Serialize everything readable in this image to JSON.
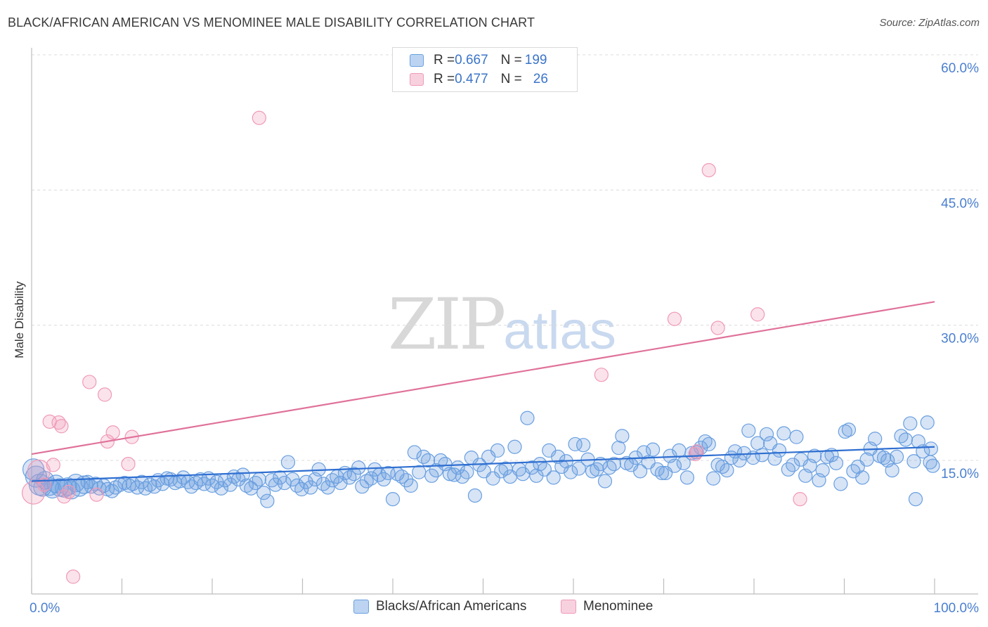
{
  "title": "BLACK/AFRICAN AMERICAN VS MENOMINEE MALE DISABILITY CORRELATION CHART",
  "source": "Source: ZipAtlas.com",
  "watermark": {
    "part1": "ZIP",
    "part2": "atlas"
  },
  "legend_top": [
    {
      "r_label": "R = ",
      "r_value": "0.667",
      "n_label": "N = ",
      "n_value": "199",
      "color": "#6a9fe0"
    },
    {
      "r_label": "R = ",
      "r_value": "0.477",
      "n_label": "N = ",
      "n_value": "26",
      "color": "#f09ab8"
    }
  ],
  "chart_data": {
    "type": "scatter",
    "ylabel": "Male Disability",
    "xlim": [
      0,
      100
    ],
    "ylim": [
      0,
      62
    ],
    "x_tick_labels": [
      "0.0%",
      "100.0%"
    ],
    "y_ticks": [
      15,
      30,
      45,
      60
    ],
    "y_tick_labels": [
      "15.0%",
      "30.0%",
      "45.0%",
      "60.0%"
    ],
    "grid": "horizontal dashed",
    "legend_position": "bottom",
    "series": [
      {
        "name": "Blacks/African Americans",
        "color": "#6a9fe0",
        "line_color": "#2f6fd1",
        "trend": {
          "x": [
            0,
            100
          ],
          "y": [
            12.7,
            16.5
          ]
        },
        "points": [
          [
            0.2,
            14.0
          ],
          [
            0.5,
            13.2
          ],
          [
            0.9,
            12.3
          ],
          [
            1.2,
            12.0
          ],
          [
            1.5,
            12.8
          ],
          [
            2.0,
            12.1
          ],
          [
            2.3,
            11.8
          ],
          [
            2.7,
            12.4
          ],
          [
            3.1,
            12.0
          ],
          [
            3.6,
            11.9
          ],
          [
            4.0,
            12.1
          ],
          [
            4.4,
            11.7
          ],
          [
            4.9,
            12.5
          ],
          [
            5.3,
            12.0
          ],
          [
            5.8,
            12.3
          ],
          [
            6.2,
            12.6
          ],
          [
            6.6,
            12.1
          ],
          [
            7.1,
            12.4
          ],
          [
            7.5,
            11.9
          ],
          [
            8.0,
            12.2
          ],
          [
            8.4,
            11.8
          ],
          [
            8.9,
            11.6
          ],
          [
            9.3,
            12.0
          ],
          [
            9.8,
            12.3
          ],
          [
            10.3,
            12.5
          ],
          [
            10.8,
            12.2
          ],
          [
            11.2,
            12.4
          ],
          [
            11.7,
            12.0
          ],
          [
            12.2,
            12.6
          ],
          [
            12.6,
            11.9
          ],
          [
            13.1,
            12.3
          ],
          [
            13.6,
            12.1
          ],
          [
            14.0,
            12.8
          ],
          [
            14.5,
            12.4
          ],
          [
            15.0,
            13.0
          ],
          [
            15.4,
            12.9
          ],
          [
            15.9,
            12.5
          ],
          [
            16.4,
            12.7
          ],
          [
            16.8,
            13.1
          ],
          [
            17.3,
            12.6
          ],
          [
            17.7,
            12.1
          ],
          [
            18.2,
            12.5
          ],
          [
            18.7,
            12.9
          ],
          [
            19.1,
            12.4
          ],
          [
            19.6,
            13.0
          ],
          [
            20.0,
            12.2
          ],
          [
            20.5,
            12.6
          ],
          [
            21.0,
            11.9
          ],
          [
            21.4,
            12.8
          ],
          [
            22.0,
            12.3
          ],
          [
            22.4,
            13.2
          ],
          [
            22.9,
            12.9
          ],
          [
            23.4,
            13.4
          ],
          [
            23.8,
            12.2
          ],
          [
            24.3,
            11.9
          ],
          [
            24.8,
            12.5
          ],
          [
            25.2,
            12.9
          ],
          [
            25.7,
            11.4
          ],
          [
            26.1,
            10.5
          ],
          [
            26.6,
            12.8
          ],
          [
            27.0,
            12.3
          ],
          [
            27.5,
            13.1
          ],
          [
            28.0,
            12.5
          ],
          [
            28.4,
            14.8
          ],
          [
            28.9,
            12.9
          ],
          [
            29.4,
            12.2
          ],
          [
            29.9,
            11.8
          ],
          [
            30.4,
            12.6
          ],
          [
            30.9,
            12.0
          ],
          [
            31.4,
            12.9
          ],
          [
            31.8,
            14.0
          ],
          [
            32.3,
            12.4
          ],
          [
            32.8,
            12.0
          ],
          [
            33.3,
            12.8
          ],
          [
            33.8,
            13.2
          ],
          [
            34.2,
            12.5
          ],
          [
            34.7,
            13.6
          ],
          [
            35.2,
            13.1
          ],
          [
            35.7,
            13.5
          ],
          [
            36.2,
            14.2
          ],
          [
            36.6,
            12.1
          ],
          [
            37.1,
            12.7
          ],
          [
            37.6,
            13.0
          ],
          [
            38.0,
            14.0
          ],
          [
            38.5,
            13.4
          ],
          [
            39.0,
            12.9
          ],
          [
            39.5,
            13.6
          ],
          [
            40.0,
            10.7
          ],
          [
            40.5,
            13.5
          ],
          [
            41.0,
            13.2
          ],
          [
            41.5,
            12.8
          ],
          [
            42.0,
            12.2
          ],
          [
            42.4,
            15.9
          ],
          [
            42.9,
            13.7
          ],
          [
            43.4,
            15.4
          ],
          [
            43.9,
            15.0
          ],
          [
            44.3,
            13.3
          ],
          [
            44.8,
            13.9
          ],
          [
            45.3,
            15.0
          ],
          [
            45.8,
            14.6
          ],
          [
            46.3,
            13.5
          ],
          [
            46.8,
            13.4
          ],
          [
            47.2,
            14.2
          ],
          [
            47.7,
            13.2
          ],
          [
            48.2,
            13.7
          ],
          [
            48.7,
            15.3
          ],
          [
            49.1,
            11.1
          ],
          [
            49.6,
            14.5
          ],
          [
            50.1,
            13.8
          ],
          [
            50.6,
            15.4
          ],
          [
            51.1,
            13.0
          ],
          [
            51.6,
            16.1
          ],
          [
            52.0,
            13.8
          ],
          [
            52.5,
            14.1
          ],
          [
            53.0,
            13.2
          ],
          [
            53.5,
            16.5
          ],
          [
            54.0,
            14.0
          ],
          [
            54.4,
            13.5
          ],
          [
            54.9,
            19.7
          ],
          [
            55.4,
            14.2
          ],
          [
            55.9,
            13.3
          ],
          [
            56.3,
            14.6
          ],
          [
            56.8,
            14.0
          ],
          [
            57.3,
            16.1
          ],
          [
            57.8,
            13.1
          ],
          [
            58.3,
            15.4
          ],
          [
            58.7,
            14.3
          ],
          [
            59.2,
            14.9
          ],
          [
            59.7,
            13.7
          ],
          [
            60.2,
            16.8
          ],
          [
            60.6,
            14.1
          ],
          [
            61.1,
            16.7
          ],
          [
            61.6,
            15.1
          ],
          [
            62.1,
            13.8
          ],
          [
            62.6,
            14.0
          ],
          [
            63.0,
            14.6
          ],
          [
            63.5,
            12.7
          ],
          [
            64.0,
            14.2
          ],
          [
            64.5,
            14.6
          ],
          [
            65.0,
            16.4
          ],
          [
            65.4,
            17.7
          ],
          [
            65.9,
            14.7
          ],
          [
            66.4,
            14.5
          ],
          [
            66.9,
            15.3
          ],
          [
            67.4,
            13.8
          ],
          [
            67.8,
            15.9
          ],
          [
            68.3,
            14.8
          ],
          [
            68.8,
            16.2
          ],
          [
            69.3,
            14.0
          ],
          [
            69.8,
            13.6
          ],
          [
            70.2,
            13.6
          ],
          [
            70.7,
            15.5
          ],
          [
            71.2,
            14.4
          ],
          [
            71.7,
            16.1
          ],
          [
            72.2,
            14.7
          ],
          [
            72.6,
            13.1
          ],
          [
            73.1,
            15.8
          ],
          [
            73.6,
            15.9
          ],
          [
            74.1,
            16.4
          ],
          [
            74.6,
            17.1
          ],
          [
            75.0,
            16.8
          ],
          [
            75.5,
            13.0
          ],
          [
            76.0,
            14.5
          ],
          [
            76.5,
            14.3
          ],
          [
            77.0,
            13.9
          ],
          [
            77.5,
            15.3
          ],
          [
            77.9,
            16.0
          ],
          [
            78.4,
            15.0
          ],
          [
            78.9,
            15.8
          ],
          [
            79.4,
            18.3
          ],
          [
            79.9,
            15.3
          ],
          [
            80.4,
            16.9
          ],
          [
            80.9,
            15.6
          ],
          [
            81.4,
            17.9
          ],
          [
            81.8,
            16.9
          ],
          [
            82.3,
            15.2
          ],
          [
            82.8,
            16.1
          ],
          [
            83.3,
            18.0
          ],
          [
            83.8,
            14.0
          ],
          [
            84.3,
            14.5
          ],
          [
            84.7,
            17.6
          ],
          [
            85.2,
            15.1
          ],
          [
            85.7,
            13.3
          ],
          [
            86.2,
            14.4
          ],
          [
            86.7,
            15.5
          ],
          [
            87.2,
            12.8
          ],
          [
            87.6,
            13.9
          ],
          [
            88.1,
            15.4
          ],
          [
            88.6,
            15.6
          ],
          [
            89.1,
            14.7
          ],
          [
            89.6,
            12.4
          ],
          [
            90.1,
            18.2
          ],
          [
            90.5,
            18.4
          ],
          [
            91.0,
            13.8
          ],
          [
            91.5,
            14.3
          ],
          [
            92.0,
            13.1
          ],
          [
            92.5,
            15.1
          ],
          [
            92.9,
            16.3
          ],
          [
            93.4,
            17.4
          ],
          [
            93.9,
            15.5
          ],
          [
            94.4,
            15.3
          ],
          [
            94.8,
            15.0
          ],
          [
            95.3,
            13.9
          ],
          [
            95.8,
            15.4
          ],
          [
            96.3,
            17.7
          ],
          [
            96.8,
            17.3
          ],
          [
            97.3,
            19.1
          ],
          [
            97.7,
            14.9
          ],
          [
            98.2,
            17.1
          ],
          [
            98.7,
            16.0
          ],
          [
            99.2,
            19.2
          ],
          [
            99.6,
            16.3
          ],
          [
            99.8,
            14.4
          ],
          [
            97.9,
            10.7
          ],
          [
            99.5,
            14.8
          ]
        ]
      },
      {
        "name": "Menominee",
        "color": "#f09ab8",
        "line_color": "#e0719a",
        "trend": {
          "x": [
            0,
            100
          ],
          "y": [
            15.7,
            32.6
          ]
        },
        "points": [
          [
            0.2,
            11.4
          ],
          [
            0.8,
            13.8
          ],
          [
            1.4,
            12.3
          ],
          [
            2.0,
            19.3
          ],
          [
            2.4,
            14.5
          ],
          [
            3.0,
            19.2
          ],
          [
            3.3,
            18.8
          ],
          [
            3.6,
            11.0
          ],
          [
            4.1,
            11.5
          ],
          [
            4.6,
            2.1
          ],
          [
            6.4,
            23.7
          ],
          [
            7.2,
            11.2
          ],
          [
            8.1,
            22.3
          ],
          [
            8.4,
            17.1
          ],
          [
            9.0,
            18.1
          ],
          [
            10.7,
            14.6
          ],
          [
            11.1,
            17.6
          ],
          [
            25.2,
            53.0
          ],
          [
            63.1,
            24.5
          ],
          [
            71.2,
            30.7
          ],
          [
            73.7,
            16.0
          ],
          [
            75.0,
            47.2
          ],
          [
            76.0,
            29.7
          ],
          [
            80.4,
            31.2
          ],
          [
            85.1,
            10.7
          ],
          [
            73.5,
            15.7
          ]
        ]
      }
    ]
  }
}
